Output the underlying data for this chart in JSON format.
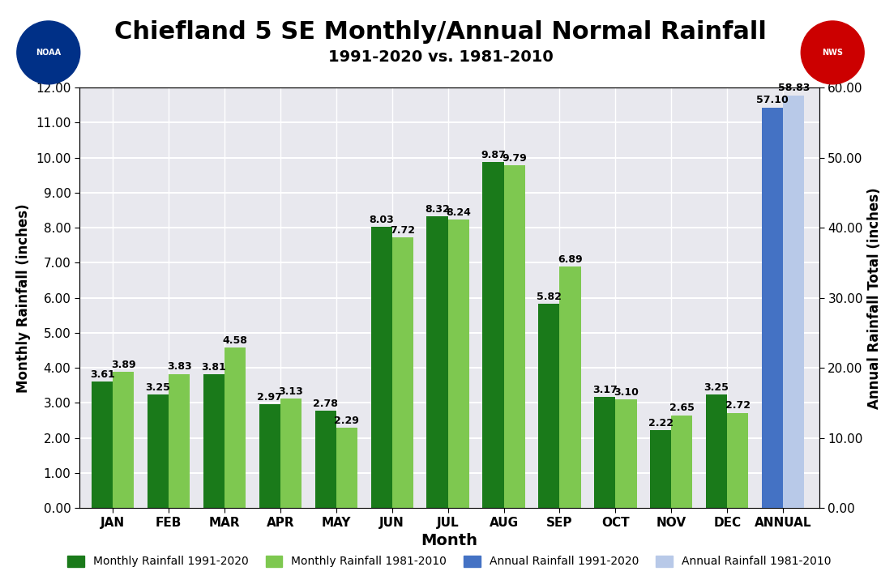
{
  "title": "Chiefland 5 SE Monthly/Annual Normal Rainfall",
  "subtitle": "1991-2020 vs. 1981-2010",
  "months": [
    "JAN",
    "FEB",
    "MAR",
    "APR",
    "MAY",
    "JUN",
    "JUL",
    "AUG",
    "SEP",
    "OCT",
    "NOV",
    "DEC",
    "ANNUAL"
  ],
  "new_monthly": [
    3.61,
    3.25,
    3.81,
    2.97,
    2.78,
    8.03,
    8.32,
    9.87,
    5.82,
    3.17,
    2.22,
    3.25
  ],
  "old_monthly": [
    3.89,
    3.83,
    4.58,
    3.13,
    2.29,
    7.72,
    8.24,
    9.79,
    6.89,
    3.1,
    2.65,
    2.72
  ],
  "new_annual": 57.1,
  "old_annual": 58.83,
  "color_new_monthly": "#1a7a1a",
  "color_old_monthly": "#7ec850",
  "color_new_annual": "#4472c4",
  "color_old_annual": "#b8c9e8",
  "xlabel": "Month",
  "ylabel_left": "Monthly Rainfall (inches)",
  "ylabel_right": "Annual Rainfall Total (inches)",
  "ylim_left": [
    0.0,
    12.0
  ],
  "ylim_right": [
    0.0,
    60.0
  ],
  "yticks_left": [
    0.0,
    1.0,
    2.0,
    3.0,
    4.0,
    5.0,
    6.0,
    7.0,
    8.0,
    9.0,
    10.0,
    11.0,
    12.0
  ],
  "yticks_right": [
    0.0,
    10.0,
    20.0,
    30.0,
    40.0,
    50.0,
    60.0
  ],
  "legend_labels": [
    "Monthly Rainfall 1991-2020",
    "Monthly Rainfall 1981-2010",
    "Annual Rainfall 1991-2020",
    "Annual Rainfall 1981-2010"
  ],
  "bg_color": "#e8e8ee",
  "bar_width": 0.38,
  "tick_fontsize": 11,
  "label_fontsize": 9,
  "title_fontsize": 22,
  "subtitle_fontsize": 14
}
